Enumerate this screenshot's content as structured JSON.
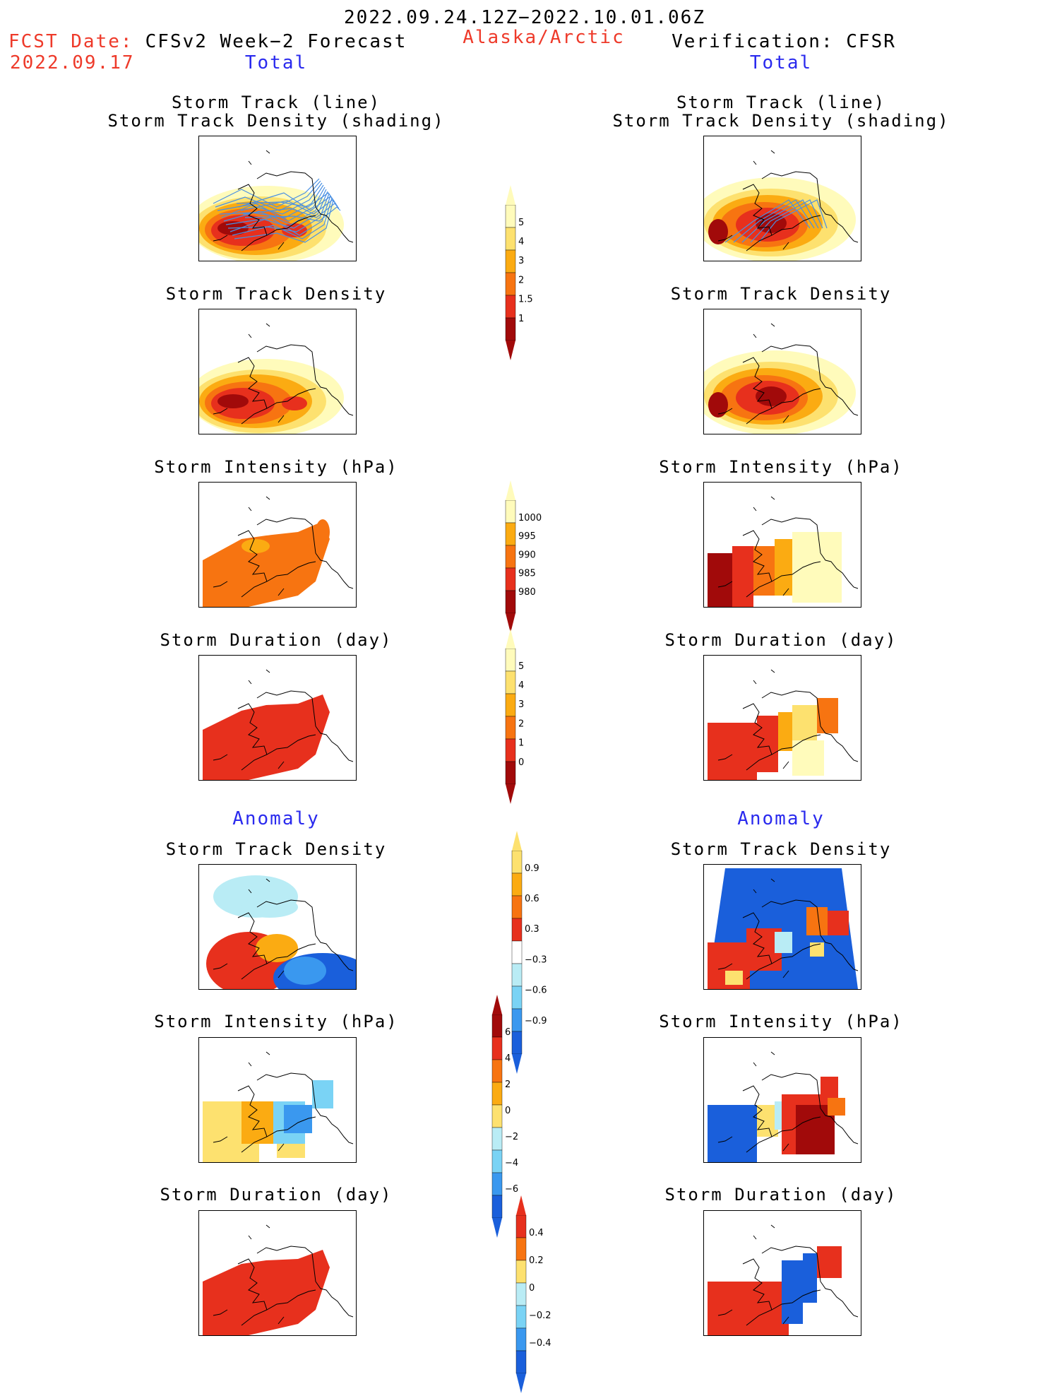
{
  "header": {
    "date_range": "2022.09.24.12Z−2022.10.01.06Z",
    "fcst_label": "FCST Date:",
    "fcst_date": "2022.09.17",
    "left_model": "CFSv2 Week−2 Forecast",
    "region": "Alaska/Arctic",
    "right_model": "Verification: CFSR",
    "left_total": "Total",
    "right_total": "Total",
    "left_anomaly": "Anomaly",
    "right_anomaly": "Anomaly"
  },
  "panels": {
    "track_title_1": "Storm Track (line)",
    "track_title_2": "Storm Track Density (shading)",
    "density": "Storm Track Density",
    "intensity": "Storm Intensity (hPa)",
    "duration": "Storm Duration (day)"
  },
  "colorbars": {
    "density_total": {
      "labels": [
        "5",
        "4",
        "3",
        "2",
        "1.5",
        "1"
      ]
    },
    "intensity_total": {
      "labels": [
        "1000",
        "995",
        "990",
        "985",
        "980"
      ]
    },
    "duration_total": {
      "labels": [
        "5",
        "4",
        "3",
        "2",
        "1",
        "0"
      ]
    },
    "density_anom": {
      "labels": [
        "0.9",
        "0.6",
        "0.3",
        "−0.3",
        "−0.6",
        "−0.9"
      ]
    },
    "intensity_anom": {
      "labels": [
        "6",
        "4",
        "2",
        "0",
        "−2",
        "−4",
        "−6"
      ]
    },
    "duration_anom": {
      "labels": [
        "0.4",
        "0.2",
        "0",
        "−0.2",
        "−0.4"
      ]
    }
  },
  "colors": {
    "warm": [
      "#fffbbb",
      "#fde16f",
      "#fbab12",
      "#f77411",
      "#e7301d",
      "#a10a0a"
    ],
    "cool": [
      "#b9ecf5",
      "#7ad3f5",
      "#3a98ef",
      "#1a5fdb"
    ],
    "track_line": "#4a90e2"
  }
}
